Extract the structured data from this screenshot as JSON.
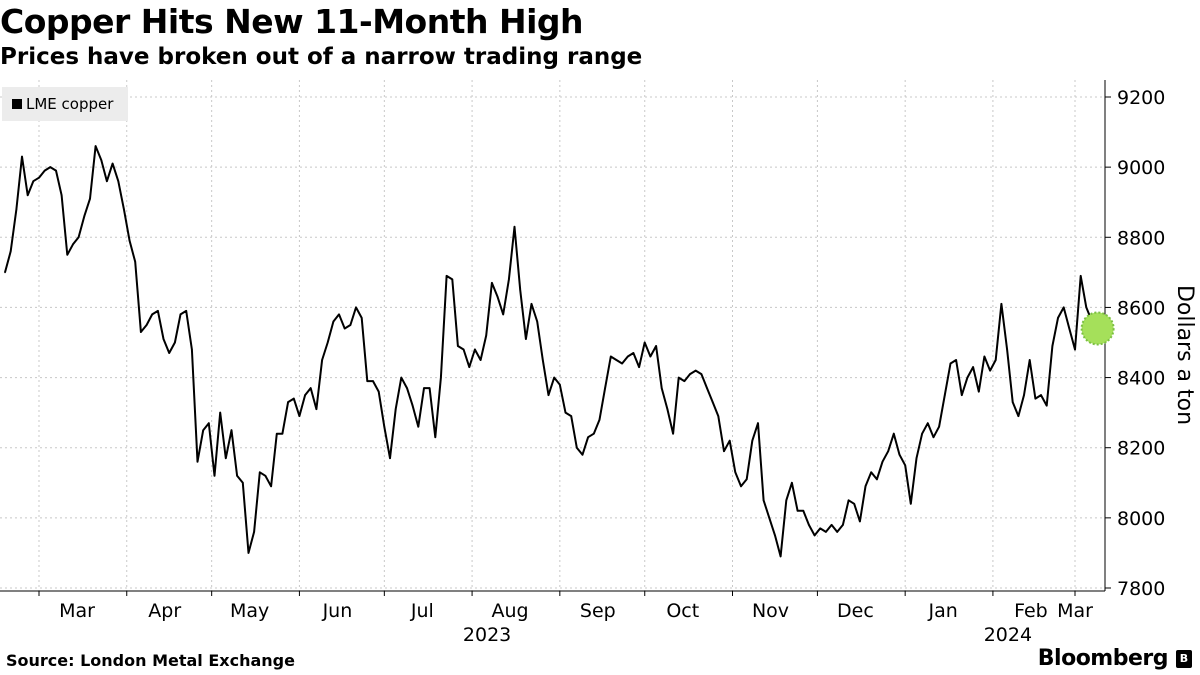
{
  "header": {
    "title": "Copper Hits New 11-Month High",
    "subtitle": "Prices have broken out of a narrow trading range"
  },
  "footer": {
    "source": "Source: London Metal Exchange",
    "brand": "Bloomberg"
  },
  "colors": {
    "line": "#000000",
    "grid": "#c8c8c8",
    "highlight": "#a5e05a",
    "legend_bg": "#ececec"
  },
  "chart_data": {
    "type": "line",
    "title": "Copper Hits New 11-Month High",
    "subtitle": "Prices have broken out of a narrow trading range",
    "ylabel": "Dollars a ton",
    "ylim": [
      7780,
      9250
    ],
    "yticks": [
      7800,
      8000,
      8200,
      8400,
      8600,
      8800,
      9000,
      9200
    ],
    "y_axis_side": "right",
    "grid": "dotted vertical and horizontal",
    "legend": {
      "position": "top-left",
      "entries": [
        "LME copper"
      ]
    },
    "x_months": [
      {
        "label": "Mar",
        "date": "2023-03-01"
      },
      {
        "label": "Apr",
        "date": "2023-04-01"
      },
      {
        "label": "May",
        "date": "2023-05-01"
      },
      {
        "label": "Jun",
        "date": "2023-06-01"
      },
      {
        "label": "Jul",
        "date": "2023-07-01"
      },
      {
        "label": "Aug",
        "date": "2023-08-01"
      },
      {
        "label": "Sep",
        "date": "2023-09-01"
      },
      {
        "label": "Oct",
        "date": "2023-10-01"
      },
      {
        "label": "Nov",
        "date": "2023-11-01"
      },
      {
        "label": "Dec",
        "date": "2023-12-01"
      },
      {
        "label": "Jan",
        "date": "2024-01-01"
      },
      {
        "label": "Feb",
        "date": "2024-02-01"
      },
      {
        "label": "Mar",
        "date": "2024-03-01"
      }
    ],
    "x_years": [
      {
        "label": "2023",
        "date": "2023-08-01"
      },
      {
        "label": "2024",
        "date": "2024-02-01"
      }
    ],
    "series": [
      {
        "name": "LME copper",
        "color": "#000000",
        "points": [
          [
            "2023-02-17",
            8700
          ],
          [
            "2023-02-19",
            8760
          ],
          [
            "2023-02-21",
            8880
          ],
          [
            "2023-02-23",
            9030
          ],
          [
            "2023-02-25",
            8920
          ],
          [
            "2023-02-27",
            8960
          ],
          [
            "2023-03-01",
            8970
          ],
          [
            "2023-03-03",
            8990
          ],
          [
            "2023-03-05",
            9000
          ],
          [
            "2023-03-07",
            8990
          ],
          [
            "2023-03-09",
            8920
          ],
          [
            "2023-03-11",
            8750
          ],
          [
            "2023-03-13",
            8780
          ],
          [
            "2023-03-15",
            8800
          ],
          [
            "2023-03-17",
            8860
          ],
          [
            "2023-03-19",
            8910
          ],
          [
            "2023-03-21",
            9060
          ],
          [
            "2023-03-23",
            9020
          ],
          [
            "2023-03-25",
            8960
          ],
          [
            "2023-03-27",
            9010
          ],
          [
            "2023-03-29",
            8960
          ],
          [
            "2023-03-31",
            8880
          ],
          [
            "2023-04-02",
            8790
          ],
          [
            "2023-04-04",
            8730
          ],
          [
            "2023-04-06",
            8530
          ],
          [
            "2023-04-08",
            8550
          ],
          [
            "2023-04-10",
            8580
          ],
          [
            "2023-04-12",
            8590
          ],
          [
            "2023-04-14",
            8510
          ],
          [
            "2023-04-16",
            8470
          ],
          [
            "2023-04-18",
            8500
          ],
          [
            "2023-04-20",
            8580
          ],
          [
            "2023-04-22",
            8590
          ],
          [
            "2023-04-24",
            8480
          ],
          [
            "2023-04-26",
            8160
          ],
          [
            "2023-04-28",
            8250
          ],
          [
            "2023-04-30",
            8270
          ],
          [
            "2023-05-02",
            8120
          ],
          [
            "2023-05-04",
            8300
          ],
          [
            "2023-05-06",
            8170
          ],
          [
            "2023-05-08",
            8250
          ],
          [
            "2023-05-10",
            8120
          ],
          [
            "2023-05-12",
            8100
          ],
          [
            "2023-05-14",
            7900
          ],
          [
            "2023-05-16",
            7960
          ],
          [
            "2023-05-18",
            8130
          ],
          [
            "2023-05-20",
            8120
          ],
          [
            "2023-05-22",
            8090
          ],
          [
            "2023-05-24",
            8240
          ],
          [
            "2023-05-26",
            8240
          ],
          [
            "2023-05-28",
            8330
          ],
          [
            "2023-05-30",
            8340
          ],
          [
            "2023-06-01",
            8290
          ],
          [
            "2023-06-03",
            8350
          ],
          [
            "2023-06-05",
            8370
          ],
          [
            "2023-06-07",
            8310
          ],
          [
            "2023-06-09",
            8450
          ],
          [
            "2023-06-11",
            8500
          ],
          [
            "2023-06-13",
            8560
          ],
          [
            "2023-06-15",
            8580
          ],
          [
            "2023-06-17",
            8540
          ],
          [
            "2023-06-19",
            8550
          ],
          [
            "2023-06-21",
            8600
          ],
          [
            "2023-06-23",
            8570
          ],
          [
            "2023-06-25",
            8390
          ],
          [
            "2023-06-27",
            8390
          ],
          [
            "2023-06-29",
            8360
          ],
          [
            "2023-07-01",
            8260
          ],
          [
            "2023-07-03",
            8170
          ],
          [
            "2023-07-05",
            8310
          ],
          [
            "2023-07-07",
            8400
          ],
          [
            "2023-07-09",
            8370
          ],
          [
            "2023-07-11",
            8320
          ],
          [
            "2023-07-13",
            8260
          ],
          [
            "2023-07-15",
            8370
          ],
          [
            "2023-07-17",
            8370
          ],
          [
            "2023-07-19",
            8230
          ],
          [
            "2023-07-21",
            8400
          ],
          [
            "2023-07-23",
            8690
          ],
          [
            "2023-07-25",
            8680
          ],
          [
            "2023-07-27",
            8490
          ],
          [
            "2023-07-29",
            8480
          ],
          [
            "2023-07-31",
            8430
          ],
          [
            "2023-08-02",
            8480
          ],
          [
            "2023-08-04",
            8450
          ],
          [
            "2023-08-06",
            8520
          ],
          [
            "2023-08-08",
            8670
          ],
          [
            "2023-08-10",
            8630
          ],
          [
            "2023-08-12",
            8580
          ],
          [
            "2023-08-14",
            8680
          ],
          [
            "2023-08-16",
            8830
          ],
          [
            "2023-08-18",
            8650
          ],
          [
            "2023-08-20",
            8510
          ],
          [
            "2023-08-22",
            8610
          ],
          [
            "2023-08-24",
            8560
          ],
          [
            "2023-08-26",
            8450
          ],
          [
            "2023-08-28",
            8350
          ],
          [
            "2023-08-30",
            8400
          ],
          [
            "2023-09-01",
            8380
          ],
          [
            "2023-09-03",
            8300
          ],
          [
            "2023-09-05",
            8290
          ],
          [
            "2023-09-07",
            8200
          ],
          [
            "2023-09-09",
            8180
          ],
          [
            "2023-09-11",
            8230
          ],
          [
            "2023-09-13",
            8240
          ],
          [
            "2023-09-15",
            8280
          ],
          [
            "2023-09-17",
            8370
          ],
          [
            "2023-09-19",
            8460
          ],
          [
            "2023-09-21",
            8450
          ],
          [
            "2023-09-23",
            8440
          ],
          [
            "2023-09-25",
            8460
          ],
          [
            "2023-09-27",
            8470
          ],
          [
            "2023-09-29",
            8430
          ],
          [
            "2023-10-01",
            8500
          ],
          [
            "2023-10-03",
            8460
          ],
          [
            "2023-10-05",
            8490
          ],
          [
            "2023-10-07",
            8370
          ],
          [
            "2023-10-09",
            8310
          ],
          [
            "2023-10-11",
            8240
          ],
          [
            "2023-10-13",
            8400
          ],
          [
            "2023-10-15",
            8390
          ],
          [
            "2023-10-17",
            8410
          ],
          [
            "2023-10-19",
            8420
          ],
          [
            "2023-10-21",
            8410
          ],
          [
            "2023-10-23",
            8370
          ],
          [
            "2023-10-25",
            8330
          ],
          [
            "2023-10-27",
            8290
          ],
          [
            "2023-10-29",
            8190
          ],
          [
            "2023-10-31",
            8220
          ],
          [
            "2023-11-02",
            8130
          ],
          [
            "2023-11-04",
            8090
          ],
          [
            "2023-11-06",
            8110
          ],
          [
            "2023-11-08",
            8220
          ],
          [
            "2023-11-10",
            8270
          ],
          [
            "2023-11-12",
            8050
          ],
          [
            "2023-11-14",
            8000
          ],
          [
            "2023-11-16",
            7950
          ],
          [
            "2023-11-18",
            7890
          ],
          [
            "2023-11-20",
            8050
          ],
          [
            "2023-11-22",
            8100
          ],
          [
            "2023-11-24",
            8020
          ],
          [
            "2023-11-26",
            8020
          ],
          [
            "2023-11-28",
            7980
          ],
          [
            "2023-11-30",
            7950
          ],
          [
            "2023-12-02",
            7970
          ],
          [
            "2023-12-04",
            7960
          ],
          [
            "2023-12-06",
            7980
          ],
          [
            "2023-12-08",
            7960
          ],
          [
            "2023-12-10",
            7980
          ],
          [
            "2023-12-12",
            8050
          ],
          [
            "2023-12-14",
            8040
          ],
          [
            "2023-12-16",
            7990
          ],
          [
            "2023-12-18",
            8090
          ],
          [
            "2023-12-20",
            8130
          ],
          [
            "2023-12-22",
            8110
          ],
          [
            "2023-12-24",
            8160
          ],
          [
            "2023-12-26",
            8190
          ],
          [
            "2023-12-28",
            8240
          ],
          [
            "2023-12-30",
            8180
          ],
          [
            "2024-01-01",
            8150
          ],
          [
            "2024-01-03",
            8040
          ],
          [
            "2024-01-05",
            8170
          ],
          [
            "2024-01-07",
            8240
          ],
          [
            "2024-01-09",
            8270
          ],
          [
            "2024-01-11",
            8230
          ],
          [
            "2024-01-13",
            8260
          ],
          [
            "2024-01-15",
            8350
          ],
          [
            "2024-01-17",
            8440
          ],
          [
            "2024-01-19",
            8450
          ],
          [
            "2024-01-21",
            8350
          ],
          [
            "2024-01-23",
            8400
          ],
          [
            "2024-01-25",
            8430
          ],
          [
            "2024-01-27",
            8360
          ],
          [
            "2024-01-29",
            8460
          ],
          [
            "2024-01-31",
            8420
          ],
          [
            "2024-02-02",
            8450
          ],
          [
            "2024-02-04",
            8610
          ],
          [
            "2024-02-06",
            8480
          ],
          [
            "2024-02-08",
            8330
          ],
          [
            "2024-02-10",
            8290
          ],
          [
            "2024-02-12",
            8350
          ],
          [
            "2024-02-14",
            8450
          ],
          [
            "2024-02-16",
            8340
          ],
          [
            "2024-02-18",
            8350
          ],
          [
            "2024-02-20",
            8320
          ],
          [
            "2024-02-22",
            8490
          ],
          [
            "2024-02-24",
            8570
          ],
          [
            "2024-02-26",
            8600
          ],
          [
            "2024-02-28",
            8540
          ],
          [
            "2024-03-01",
            8480
          ],
          [
            "2024-03-03",
            8690
          ],
          [
            "2024-03-05",
            8600
          ],
          [
            "2024-03-07",
            8560
          ],
          [
            "2024-03-09",
            8540
          ]
        ]
      }
    ]
  }
}
